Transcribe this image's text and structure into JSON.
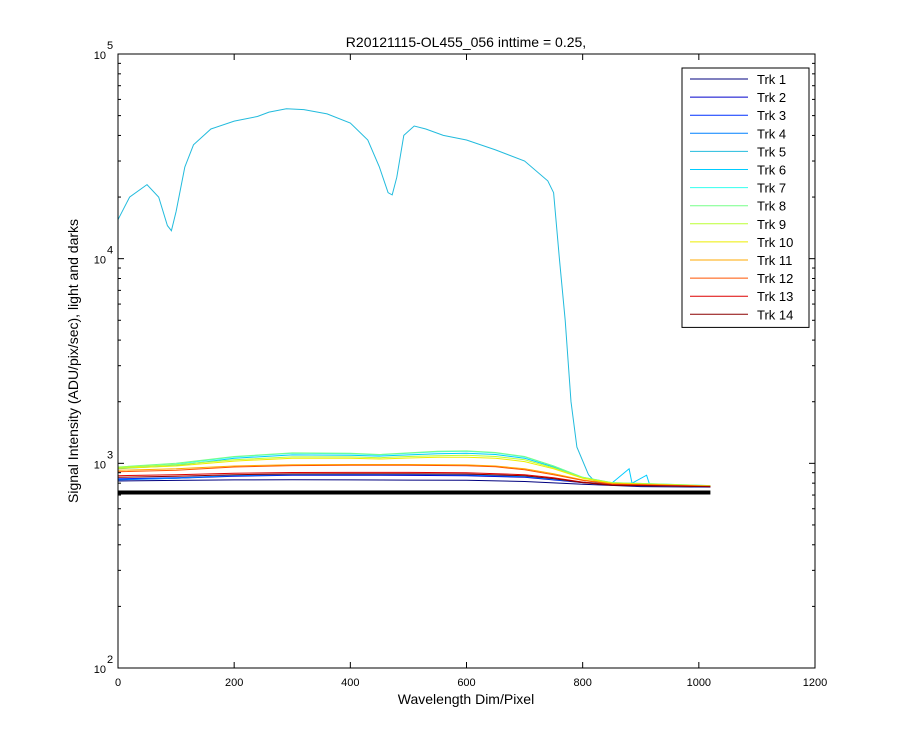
{
  "chart_data": {
    "type": "line",
    "title": "R20121115-OL455_056 inttime = 0.25,",
    "xlabel": "Wavelength Dim/Pixel",
    "ylabel": "Signal Intensity (ADU/pix/sec), light and darks",
    "xlim": [
      0,
      1200
    ],
    "ylim": [
      100,
      100000
    ],
    "yscale": "log",
    "xticks": [
      0,
      200,
      400,
      600,
      800,
      1000,
      1200
    ],
    "yticks": [
      {
        "base": "10",
        "exp": "2",
        "value": 100
      },
      {
        "base": "10",
        "exp": "3",
        "value": 1000
      },
      {
        "base": "10",
        "exp": "4",
        "value": 10000
      },
      {
        "base": "10",
        "exp": "5",
        "value": 100000
      }
    ],
    "grid": false,
    "legend_position": "top-right",
    "series": [
      {
        "name": "Trk 1",
        "color": "#00007f",
        "points": [
          [
            0,
            820
          ],
          [
            100,
            825
          ],
          [
            200,
            830
          ],
          [
            300,
            832
          ],
          [
            400,
            830
          ],
          [
            500,
            828
          ],
          [
            600,
            826
          ],
          [
            700,
            815
          ],
          [
            800,
            790
          ],
          [
            900,
            770
          ],
          [
            1020,
            765
          ]
        ]
      },
      {
        "name": "Trk 2",
        "color": "#0000cc",
        "points": [
          [
            0,
            835
          ],
          [
            100,
            845
          ],
          [
            200,
            865
          ],
          [
            300,
            875
          ],
          [
            400,
            875
          ],
          [
            500,
            873
          ],
          [
            600,
            870
          ],
          [
            700,
            855
          ],
          [
            800,
            805
          ],
          [
            900,
            775
          ],
          [
            1020,
            768
          ]
        ]
      },
      {
        "name": "Trk 3",
        "color": "#0030ff",
        "points": [
          [
            0,
            840
          ],
          [
            100,
            850
          ],
          [
            200,
            870
          ],
          [
            300,
            880
          ],
          [
            400,
            882
          ],
          [
            500,
            882
          ],
          [
            600,
            878
          ],
          [
            700,
            860
          ],
          [
            800,
            808
          ],
          [
            900,
            776
          ],
          [
            1020,
            768
          ]
        ]
      },
      {
        "name": "Trk 4",
        "color": "#0080ff",
        "points": [
          [
            0,
            830
          ],
          [
            100,
            845
          ],
          [
            200,
            872
          ],
          [
            300,
            882
          ],
          [
            400,
            884
          ],
          [
            500,
            884
          ],
          [
            600,
            880
          ],
          [
            700,
            862
          ],
          [
            800,
            808
          ],
          [
            900,
            776
          ],
          [
            1020,
            768
          ]
        ]
      },
      {
        "name": "Trk 5",
        "color": "#22bbdd",
        "points": [
          [
            0,
            15500
          ],
          [
            20,
            20000
          ],
          [
            50,
            23000
          ],
          [
            70,
            20000
          ],
          [
            85,
            14500
          ],
          [
            92,
            13700
          ],
          [
            100,
            17000
          ],
          [
            115,
            28000
          ],
          [
            130,
            36000
          ],
          [
            160,
            43000
          ],
          [
            200,
            47000
          ],
          [
            240,
            49500
          ],
          [
            260,
            52000
          ],
          [
            290,
            54000
          ],
          [
            320,
            53500
          ],
          [
            360,
            51000
          ],
          [
            400,
            46000
          ],
          [
            430,
            38000
          ],
          [
            450,
            28000
          ],
          [
            465,
            21000
          ],
          [
            472,
            20500
          ],
          [
            480,
            25000
          ],
          [
            492,
            40000
          ],
          [
            510,
            44500
          ],
          [
            530,
            43000
          ],
          [
            560,
            40000
          ],
          [
            600,
            38000
          ],
          [
            650,
            34000
          ],
          [
            700,
            30000
          ],
          [
            740,
            24000
          ],
          [
            750,
            21000
          ],
          [
            760,
            10000
          ],
          [
            770,
            5000
          ],
          [
            780,
            2000
          ],
          [
            790,
            1200
          ],
          [
            810,
            880
          ],
          [
            820,
            820
          ],
          [
            850,
            800
          ],
          [
            900,
            790
          ],
          [
            1020,
            775
          ]
        ]
      },
      {
        "name": "Trk 6",
        "color": "#00ccff",
        "points": [
          [
            0,
            940
          ],
          [
            100,
            975
          ],
          [
            200,
            1060
          ],
          [
            300,
            1100
          ],
          [
            400,
            1095
          ],
          [
            450,
            1085
          ],
          [
            500,
            1100
          ],
          [
            550,
            1115
          ],
          [
            600,
            1120
          ],
          [
            650,
            1105
          ],
          [
            700,
            1060
          ],
          [
            750,
            960
          ],
          [
            800,
            850
          ],
          [
            850,
            800
          ],
          [
            880,
            940
          ],
          [
            885,
            800
          ],
          [
            910,
            875
          ],
          [
            915,
            790
          ],
          [
            950,
            785
          ],
          [
            1020,
            775
          ]
        ]
      },
      {
        "name": "Trk 7",
        "color": "#33ffee",
        "points": [
          [
            0,
            950
          ],
          [
            100,
            990
          ],
          [
            200,
            1075
          ],
          [
            300,
            1120
          ],
          [
            400,
            1115
          ],
          [
            450,
            1100
          ],
          [
            500,
            1120
          ],
          [
            550,
            1140
          ],
          [
            600,
            1145
          ],
          [
            650,
            1125
          ],
          [
            700,
            1075
          ],
          [
            750,
            970
          ],
          [
            800,
            855
          ],
          [
            850,
            805
          ],
          [
            1020,
            778
          ]
        ]
      },
      {
        "name": "Trk 8",
        "color": "#77ff88",
        "points": [
          [
            0,
            960
          ],
          [
            100,
            1000
          ],
          [
            200,
            1080
          ],
          [
            300,
            1125
          ],
          [
            400,
            1120
          ],
          [
            450,
            1105
          ],
          [
            500,
            1125
          ],
          [
            550,
            1145
          ],
          [
            600,
            1150
          ],
          [
            650,
            1130
          ],
          [
            700,
            1080
          ],
          [
            750,
            970
          ],
          [
            800,
            855
          ],
          [
            850,
            805
          ],
          [
            1020,
            778
          ]
        ]
      },
      {
        "name": "Trk 9",
        "color": "#bbff33",
        "points": [
          [
            0,
            955
          ],
          [
            100,
            985
          ],
          [
            200,
            1040
          ],
          [
            300,
            1075
          ],
          [
            400,
            1075
          ],
          [
            450,
            1065
          ],
          [
            500,
            1080
          ],
          [
            550,
            1090
          ],
          [
            600,
            1095
          ],
          [
            650,
            1080
          ],
          [
            700,
            1040
          ],
          [
            750,
            950
          ],
          [
            800,
            850
          ],
          [
            850,
            803
          ],
          [
            1020,
            776
          ]
        ]
      },
      {
        "name": "Trk 10",
        "color": "#eeee00",
        "points": [
          [
            0,
            945
          ],
          [
            100,
            970
          ],
          [
            200,
            1025
          ],
          [
            300,
            1060
          ],
          [
            400,
            1060
          ],
          [
            450,
            1050
          ],
          [
            500,
            1062
          ],
          [
            550,
            1070
          ],
          [
            600,
            1072
          ],
          [
            650,
            1060
          ],
          [
            700,
            1020
          ],
          [
            750,
            940
          ],
          [
            800,
            845
          ],
          [
            850,
            800
          ],
          [
            1020,
            775
          ]
        ]
      },
      {
        "name": "Trk 11",
        "color": "#ffaa00",
        "points": [
          [
            0,
            925
          ],
          [
            100,
            940
          ],
          [
            200,
            970
          ],
          [
            300,
            985
          ],
          [
            400,
            987
          ],
          [
            500,
            987
          ],
          [
            600,
            982
          ],
          [
            650,
            970
          ],
          [
            700,
            940
          ],
          [
            750,
            890
          ],
          [
            800,
            830
          ],
          [
            850,
            795
          ],
          [
            1020,
            773
          ]
        ]
      },
      {
        "name": "Trk 12",
        "color": "#ff5500",
        "points": [
          [
            0,
            910
          ],
          [
            100,
            925
          ],
          [
            200,
            960
          ],
          [
            300,
            975
          ],
          [
            400,
            978
          ],
          [
            500,
            978
          ],
          [
            600,
            974
          ],
          [
            650,
            962
          ],
          [
            700,
            930
          ],
          [
            750,
            880
          ],
          [
            800,
            825
          ],
          [
            850,
            792
          ],
          [
            1020,
            772
          ]
        ]
      },
      {
        "name": "Trk 13",
        "color": "#dd0000",
        "points": [
          [
            0,
            870
          ],
          [
            100,
            880
          ],
          [
            200,
            895
          ],
          [
            300,
            902
          ],
          [
            400,
            903
          ],
          [
            500,
            903
          ],
          [
            600,
            900
          ],
          [
            700,
            880
          ],
          [
            750,
            850
          ],
          [
            800,
            810
          ],
          [
            850,
            785
          ],
          [
            1020,
            770
          ]
        ]
      },
      {
        "name": "Trk 14",
        "color": "#8b0000",
        "points": [
          [
            0,
            855
          ],
          [
            100,
            865
          ],
          [
            200,
            880
          ],
          [
            300,
            888
          ],
          [
            400,
            890
          ],
          [
            500,
            890
          ],
          [
            600,
            887
          ],
          [
            700,
            870
          ],
          [
            750,
            842
          ],
          [
            800,
            805
          ],
          [
            850,
            782
          ],
          [
            1020,
            768
          ]
        ]
      },
      {
        "color": "#000000",
        "points": [
          [
            0,
            720
          ],
          [
            1020,
            720
          ]
        ]
      }
    ]
  }
}
